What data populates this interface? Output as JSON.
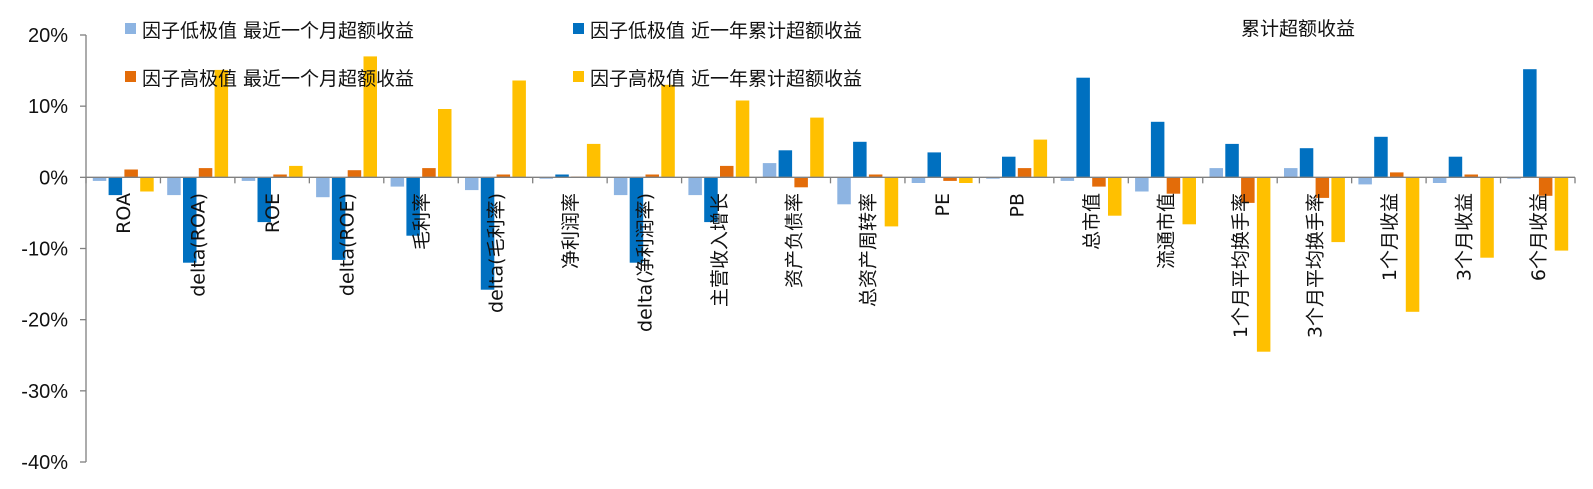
{
  "chart_data": {
    "type": "bar",
    "title": "累计超额收益",
    "categories": [
      "ROA",
      "delta(ROA)",
      "ROE",
      "delta(ROE)",
      "毛利率",
      "delta(毛利率)",
      "净利润率",
      "delta(净利润率)",
      "主营收入增长",
      "资产负债率",
      "总资产周转率",
      "PE",
      "PB",
      "总市值",
      "流通市值",
      "1个月平均换手率",
      "3个月平均换手率",
      "1个月收益",
      "3个月收益",
      "6个月收益"
    ],
    "y_unit": "%",
    "ylim": [
      -40,
      20
    ],
    "yticks": [
      -40,
      -30,
      -20,
      -10,
      0,
      10,
      20
    ],
    "ytick_labels": [
      "-40%",
      "-30%",
      "-20%",
      "-10%",
      "0%",
      "10%",
      "20%"
    ],
    "legend_position": "top-left",
    "series": [
      {
        "name": "因子低极值 最近一个月超额收益",
        "color": "#8db4e2",
        "values": [
          -0.5,
          -2.5,
          -0.5,
          -2.8,
          -1.3,
          -1.8,
          -0.2,
          -2.5,
          -2.5,
          2.0,
          -3.8,
          -0.8,
          -0.2,
          -0.5,
          -2.0,
          1.3,
          1.3,
          -1.0,
          -0.8,
          -0.2
        ]
      },
      {
        "name": "因子低极值 近一年累计超额收益",
        "color": "#0070c0",
        "values": [
          -2.5,
          -12.0,
          -6.3,
          -11.6,
          -8.2,
          -15.8,
          0.4,
          -12.0,
          -6.3,
          3.8,
          5.0,
          3.5,
          2.9,
          14.0,
          7.8,
          4.7,
          4.1,
          5.7,
          2.9,
          15.2
        ]
      },
      {
        "name": "因子高极值 最近一个月超额收益",
        "color": "#e36c09",
        "values": [
          1.1,
          1.3,
          0.4,
          1.0,
          1.3,
          0.4,
          0.1,
          0.4,
          1.6,
          -1.4,
          0.4,
          -0.5,
          1.3,
          -1.3,
          -2.3,
          -3.6,
          -2.9,
          0.7,
          0.4,
          -2.6
        ]
      },
      {
        "name": "因子高极值 近一年累计超额收益",
        "color": "#ffc000",
        "values": [
          -2.0,
          15.1,
          1.6,
          17.0,
          9.6,
          13.6,
          4.7,
          13.0,
          10.8,
          8.4,
          -6.9,
          -0.8,
          5.3,
          -5.4,
          -6.6,
          -24.5,
          -9.1,
          -18.9,
          -11.3,
          -10.3
        ]
      }
    ]
  }
}
